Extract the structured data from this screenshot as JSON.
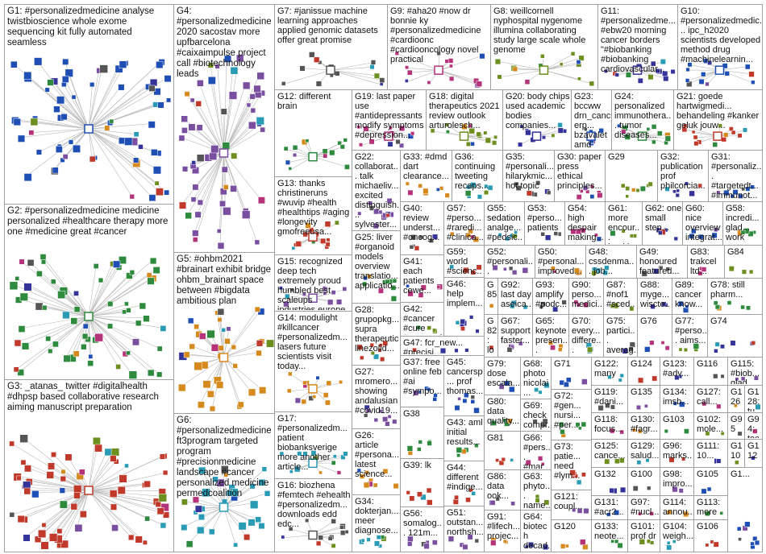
{
  "groups": [
    {
      "label": "G1: #personalizedmedicine analyse twistbioscience whole exome sequencing kit fully automated seamless"
    },
    {
      "label": "G2: #personalizedmedicine medicine personalized #healthcare therapy more one #medicine great #cancer"
    },
    {
      "label": "G3: _atanas_ twitter #digitalhealth #dhpsp based collaborative research aiming manuscript preparation"
    },
    {
      "label": "G4: #personalizedmedicine 2020 sacostav more upfbarcelona #caixaimpulse project call #biotechnology leads"
    },
    {
      "label": "G5: #ohbm2021 #brainart exhibit bridge ohbm_brainart space between #bigdata ambitious plan"
    },
    {
      "label": "G6: #personalizedmedicine ft3program targeted program #precisionmedicine landscape #cancer personalized medicine permedcoalition"
    },
    {
      "label": "G7: #janissue machine learning approaches applied genomic datasets offer great promise"
    },
    {
      "label": "G9: #aha20 #now dr bonnie ky #personalizedmedicine #cardioonc #cardiooncology novel practical"
    },
    {
      "label": "G8: weillcornell nyphospital nygenome illumina collaborating study large scale whole genome"
    },
    {
      "label": "G11: #personalizedme... #ebw20 morning cancer borders \"#biobanking #biobanking cardiovascular..."
    },
    {
      "label": "G10: #personalizedmedic... ipc_h2020 scientists developed method drug #machinelearnin..."
    },
    {
      "label": "G12: different brain"
    },
    {
      "label": "G13: thanks christineruns #wuvip #health #healthtips #aging #longevity gmofreeusa..."
    },
    {
      "label": "G15: recognized deep tech extremely proud humbled best scaleups industries europe"
    },
    {
      "label": "G14: modulight #killcancer #personalizedm... lasers future scientists visit today..."
    },
    {
      "label": "G17: #personalizedm... patient biobanksverige more another article..."
    },
    {
      "label": "G16: biozhena #femtech #ehealth #personalizedm... downloads edd edc..."
    },
    {
      "label": "G19: last paper use #antidepressants modify symptoms #depression..."
    },
    {
      "label": "G18: digital therapeutics 2021 review outlook arturolesch..."
    },
    {
      "label": "G20: body chips used academic bodies companies..."
    },
    {
      "label": "G23: bccww drn_cancerp... bzavaletamd asco_pubs drattai..."
    },
    {
      "label": "G24: personalized immunothera... tumor diseases..."
    },
    {
      "label": "G21: goede hartwigmedi... behandeling #kanker geluk jouw..."
    },
    {
      "label": "G22: collaborat... talk michaeliv... excited distinguish... sylvester..."
    },
    {
      "label": "G33: #dmd dart clearance..."
    },
    {
      "label": "G36: continuing tweeting recaps..."
    },
    {
      "label": "G35: #personali... hilarykmic... hot topic"
    },
    {
      "label": "G30: paper press ethical principles..."
    },
    {
      "label": "G29"
    },
    {
      "label": "G32: publication prof philcorcia..."
    },
    {
      "label": "G31: #personaliz... #targetedt... #immunot..."
    },
    {
      "label": "G25: liver #organoid models overview translatio... applicatio..."
    },
    {
      "label": "G28: grupopkg... supra therapeutic linezolid..."
    },
    {
      "label": "G27: mromero... showing andalusian #covid19..."
    },
    {
      "label": "G26: article #persona... latest science..."
    },
    {
      "label": "G34: dokterjan... meer diagnose..."
    },
    {
      "label": "G40: review underst... #oncog..."
    },
    {
      "label": "G41: each patients cewe..."
    },
    {
      "label": "G42: #cancer #cure #personal..."
    },
    {
      "label": "G47: fcr_new... #precisi..."
    },
    {
      "label": "G37: free online feb #ai #sympo..."
    },
    {
      "label": "G38"
    },
    {
      "label": "G39: lk"
    },
    {
      "label": "G56: somalog... 121m..."
    },
    {
      "label": "G57: #perso... #raredi... #clinica..."
    },
    {
      "label": "G55: sedation analge... #pedsic..."
    },
    {
      "label": "G53: #perso... patients"
    },
    {
      "label": "G54: high despair making..."
    },
    {
      "label": "G61: more encour... healthy..."
    },
    {
      "label": "G62: one small step..."
    },
    {
      "label": "G60: nice overview integrat..."
    },
    {
      "label": "G58: incredi... glad... work aaron..."
    },
    {
      "label": "G59: world #scienc..."
    },
    {
      "label": "G52: #personali... martin_an..."
    },
    {
      "label": "G50: #personal... improved..."
    },
    {
      "label": "G48: cssdenma... job..."
    },
    {
      "label": "G49: honoured featured..."
    },
    {
      "label": "G83: trakcel ltd..."
    },
    {
      "label": "G84"
    },
    {
      "label": "G46: help implem..."
    },
    {
      "label": "G45: cancersp... prof thomas..."
    },
    {
      "label": "G43: aml initial results..."
    },
    {
      "label": "G44: different #indige..."
    },
    {
      "label": "G51: outstan... northsh..."
    },
    {
      "label": "G85"
    },
    {
      "label": "G92: last day aseica..."
    },
    {
      "label": "G93: amplify #podc..."
    },
    {
      "label": "G90: perso... medici..."
    },
    {
      "label": "G87: #nof1 #sced..."
    },
    {
      "label": "G88: myge... wiscte..."
    },
    {
      "label": "G89: cancer know..."
    },
    {
      "label": "G78: still pharm..."
    },
    {
      "label": "G82: love know..."
    },
    {
      "label": "G67: support faster..."
    },
    {
      "label": "G65: keynote presen..."
    },
    {
      "label": "G70: every... differe..."
    },
    {
      "label": "G75: partici... averag..."
    },
    {
      "label": "G76"
    },
    {
      "label": "G77: #perso... aims..."
    },
    {
      "label": "G74"
    },
    {
      "label": "G79: dose escala..."
    },
    {
      "label": "G80: data quality..."
    },
    {
      "label": "G81"
    },
    {
      "label": "G86: data ook..."
    },
    {
      "label": "G91: #lifech... projec..."
    },
    {
      "label": "G68: photo nicolai..."
    },
    {
      "label": "G69: check compr..."
    },
    {
      "label": "G66: #pers... #mar..."
    },
    {
      "label": "G63: phyto... name..."
    },
    {
      "label": "G64: biotech decad..."
    },
    {
      "label": "G71"
    },
    {
      "label": "G72: #gen... nursi... #per..."
    },
    {
      "label": "G73: patie... need #lym..."
    },
    {
      "label": "G121: coupl..."
    },
    {
      "label": "G120"
    },
    {
      "label": "G122: many"
    },
    {
      "label": "G119: #dani..."
    },
    {
      "label": "G118: focus..."
    },
    {
      "label": "G125: cance..."
    },
    {
      "label": "G132"
    },
    {
      "label": "G131: #acr2..."
    },
    {
      "label": "G133: neote..."
    },
    {
      "label": "G124"
    },
    {
      "label": "G135"
    },
    {
      "label": "G130: #fagr..."
    },
    {
      "label": "G129: salud..."
    },
    {
      "label": "G100"
    },
    {
      "label": "G97: #nucl..."
    },
    {
      "label": "G101: prof dr"
    },
    {
      "label": "G123: #adv..."
    },
    {
      "label": "G134: imsb..."
    },
    {
      "label": "G103"
    },
    {
      "label": "G96: marks..."
    },
    {
      "label": "G98: impro..."
    },
    {
      "label": "G114: annou..."
    },
    {
      "label": "G104: weigh..."
    },
    {
      "label": "G116"
    },
    {
      "label": "G127: call..."
    },
    {
      "label": "G102: mole..."
    },
    {
      "label": "G111: 10..."
    },
    {
      "label": "G105"
    },
    {
      "label": "G113: more"
    },
    {
      "label": "G106"
    },
    {
      "label": "G115: #biob... glad..."
    },
    {
      "label": "G126"
    },
    {
      "label": "G128: tumo..."
    },
    {
      "label": "G95"
    },
    {
      "label": "G94: techc..."
    },
    {
      "label": "G110"
    },
    {
      "label": "G112"
    },
    {
      "label": "G1..."
    }
  ]
}
